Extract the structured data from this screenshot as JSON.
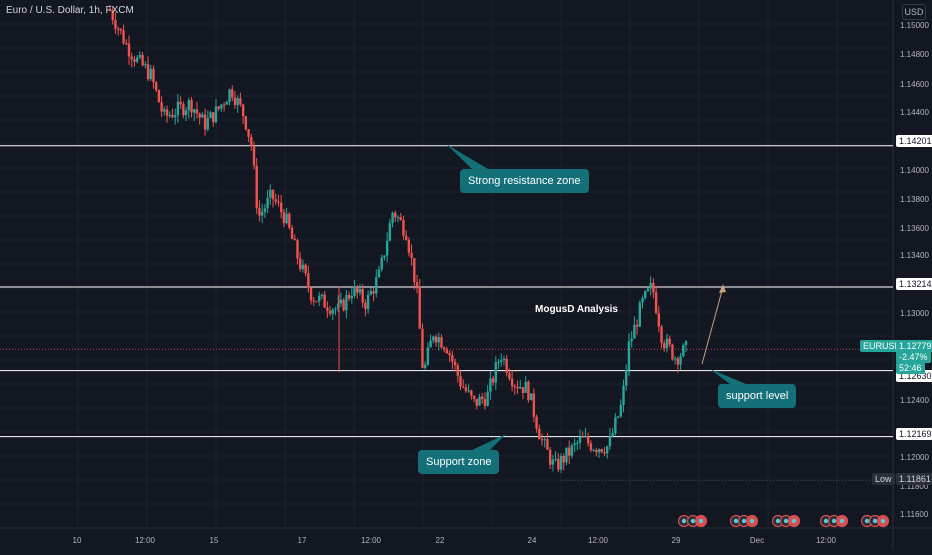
{
  "symbol_title": "Euro / U.S. Dollar, 1h, FXCM",
  "currency_label": "USD",
  "analysis_title": "MogusD Analysis",
  "callouts": {
    "resistance": "Strong resistance zone",
    "support_zone": "Support zone",
    "support_level": "support level"
  },
  "levels": {
    "resistance_high": "1.14201",
    "resistance_low": "1.13214",
    "support_level": "1.12630",
    "support_zone": "1.12169"
  },
  "current_price": {
    "symbol": "EURUSD",
    "price": "1.12779",
    "change": "-2.47%",
    "countdown": "52:46"
  },
  "low_marker": {
    "label": "Low",
    "value": "1.11861"
  },
  "price_ticks": [
    "1.15000",
    "1.14800",
    "1.14600",
    "1.14400",
    "1.14000",
    "1.13800",
    "1.13600",
    "1.13400",
    "1.13000",
    "1.12400",
    "1.12000",
    "1.11800",
    "1.11600"
  ],
  "time_ticks": [
    "10",
    "12:00",
    "15",
    "17",
    "12:00",
    "22",
    "24",
    "12:00",
    "29",
    "Dec",
    "12:00"
  ],
  "colors": {
    "up": "#26a69a",
    "down": "#ef5350",
    "background": "#131722",
    "callout": "#136f78",
    "arrow": "#c8a27c"
  },
  "chart_data": {
    "type": "candlestick",
    "ylim": [
      1.1153,
      1.1515
    ],
    "horizontal_levels": [
      1.14201,
      1.13214,
      1.1263,
      1.12169
    ],
    "close_path": [
      {
        "x": 0,
        "y": 1.1515
      },
      {
        "x": 0.5,
        "y": 1.149
      },
      {
        "x": 0.8,
        "y": 1.148
      },
      {
        "x": 1.2,
        "y": 1.147
      },
      {
        "x": 1.6,
        "y": 1.144
      },
      {
        "x": 2.0,
        "y": 1.1445
      },
      {
        "x": 2.4,
        "y": 1.145
      },
      {
        "x": 2.8,
        "y": 1.1435
      },
      {
        "x": 3.2,
        "y": 1.1445
      },
      {
        "x": 3.6,
        "y": 1.146
      },
      {
        "x": 4.0,
        "y": 1.144
      },
      {
        "x": 4.2,
        "y": 1.142
      },
      {
        "x": 4.4,
        "y": 1.137
      },
      {
        "x": 4.8,
        "y": 1.1385
      },
      {
        "x": 5.2,
        "y": 1.137
      },
      {
        "x": 5.6,
        "y": 1.134
      },
      {
        "x": 6.0,
        "y": 1.1315
      },
      {
        "x": 6.4,
        "y": 1.131
      },
      {
        "x": 6.8,
        "y": 1.1305
      },
      {
        "x": 7.2,
        "y": 1.132
      },
      {
        "x": 7.6,
        "y": 1.131
      },
      {
        "x": 8.0,
        "y": 1.133
      },
      {
        "x": 8.4,
        "y": 1.1375
      },
      {
        "x": 8.8,
        "y": 1.136
      },
      {
        "x": 9.1,
        "y": 1.132
      },
      {
        "x": 9.3,
        "y": 1.126
      },
      {
        "x": 9.6,
        "y": 1.129
      },
      {
        "x": 10.0,
        "y": 1.128
      },
      {
        "x": 10.4,
        "y": 1.1255
      },
      {
        "x": 10.8,
        "y": 1.124
      },
      {
        "x": 11.2,
        "y": 1.1245
      },
      {
        "x": 11.6,
        "y": 1.1275
      },
      {
        "x": 12.0,
        "y": 1.1255
      },
      {
        "x": 12.4,
        "y": 1.125
      },
      {
        "x": 12.8,
        "y": 1.1215
      },
      {
        "x": 13.2,
        "y": 1.1195
      },
      {
        "x": 13.6,
        "y": 1.1205
      },
      {
        "x": 14.0,
        "y": 1.1215
      },
      {
        "x": 14.4,
        "y": 1.121
      },
      {
        "x": 14.8,
        "y": 1.121
      },
      {
        "x": 15.2,
        "y": 1.124
      },
      {
        "x": 15.4,
        "y": 1.128
      },
      {
        "x": 15.8,
        "y": 1.131
      },
      {
        "x": 16.1,
        "y": 1.1322
      },
      {
        "x": 16.4,
        "y": 1.1285
      },
      {
        "x": 16.8,
        "y": 1.1272
      },
      {
        "x": 17.1,
        "y": 1.1278
      }
    ],
    "x_days": 20
  }
}
